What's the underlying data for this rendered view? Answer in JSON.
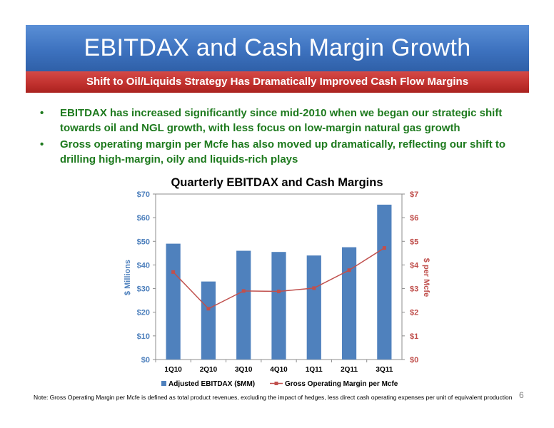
{
  "slide": {
    "title": "EBITDAX and Cash Margin Growth",
    "subtitle": "Shift to Oil/Liquids Strategy Has Dramatically Improved Cash Flow Margins",
    "bullets": [
      "EBITDAX has increased significantly since mid-2010 when we began our strategic shift towards oil and NGL growth, with less focus on low-margin natural gas growth",
      "Gross operating margin per Mcfe has also moved up dramatically, reflecting our shift to drilling high-margin, oily and liquids-rich plays"
    ],
    "bullet_marker": "•",
    "footnote": "Note: Gross Operating Margin per Mcfe is defined as total product revenues, excluding the impact of hedges, less direct cash operating expenses per unit of equivalent production",
    "page_number": "6",
    "colors": {
      "title_band": "#3d72bf",
      "subtitle_band": "#c0302d",
      "bullet_text": "#1e7a1e",
      "bars": "#4f81bd",
      "line": "#c0504d"
    }
  },
  "chart_data": {
    "type": "bar+line",
    "title": "Quarterly EBITDAX and Cash Margins",
    "categories": [
      "1Q10",
      "2Q10",
      "3Q10",
      "4Q10",
      "1Q11",
      "2Q11",
      "3Q11"
    ],
    "ylabel_left": "$ Millions",
    "ylabel_right": "$ per Mcfe",
    "ylim_left": [
      0,
      70
    ],
    "ylim_right": [
      0,
      7
    ],
    "yticks_left": [
      "$0",
      "$10",
      "$20",
      "$30",
      "$40",
      "$50",
      "$60",
      "$70"
    ],
    "yticks_right": [
      "$0",
      "$1",
      "$2",
      "$3",
      "$4",
      "$5",
      "$6",
      "$7"
    ],
    "grid": false,
    "legend_position": "bottom",
    "series": [
      {
        "name": "Adjusted EBITDAX ($MM)",
        "type": "bar",
        "axis": "left",
        "color": "#4f81bd",
        "values": [
          49,
          33,
          46,
          45.5,
          44,
          47.5,
          65.5
        ]
      },
      {
        "name": "Gross Operating Margin per Mcfe",
        "type": "line",
        "axis": "right",
        "color": "#c0504d",
        "values": [
          3.7,
          2.15,
          2.9,
          2.88,
          3.02,
          3.78,
          4.72
        ]
      }
    ]
  }
}
